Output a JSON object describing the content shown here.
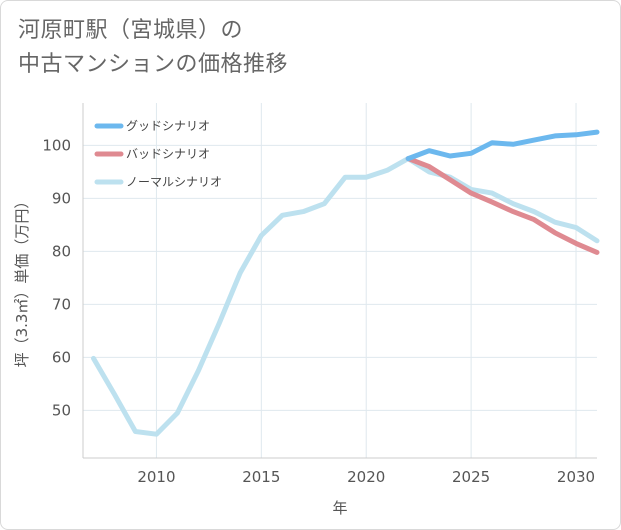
{
  "title": {
    "line1": "河原町駅（宮城県）の",
    "line2": "中古マンションの価格推移"
  },
  "chart_data": {
    "type": "line",
    "xlabel": "年",
    "ylabel": "坪（3.3㎡）単価（万円）",
    "xlim": [
      2006.5,
      2031
    ],
    "ylim": [
      41,
      108
    ],
    "x_ticks": [
      2010,
      2015,
      2020,
      2025,
      2030
    ],
    "y_ticks": [
      50,
      60,
      70,
      80,
      90,
      100
    ],
    "grid": true,
    "legend_position": "top-left",
    "series": [
      {
        "name": "グッドシナリオ",
        "color": "#6cb8ee",
        "x": [
          2022,
          2023,
          2024,
          2025,
          2026,
          2027,
          2028,
          2029,
          2030,
          2031
        ],
        "values": [
          97.5,
          99.0,
          98.0,
          98.5,
          100.5,
          100.2,
          101.0,
          101.8,
          102.0,
          102.5
        ]
      },
      {
        "name": "バッドシナリオ",
        "color": "#df8a91",
        "x": [
          2022,
          2023,
          2024,
          2025,
          2026,
          2027,
          2028,
          2029,
          2030,
          2031
        ],
        "values": [
          97.5,
          96.0,
          93.5,
          91.0,
          89.3,
          87.5,
          86.0,
          83.5,
          81.5,
          79.8
        ]
      },
      {
        "name": "ノーマルシナリオ",
        "color": "#bde1ef",
        "x": [
          2007,
          2008,
          2009,
          2010,
          2011,
          2012,
          2013,
          2014,
          2015,
          2016,
          2017,
          2018,
          2019,
          2020,
          2021,
          2022,
          2023,
          2024,
          2025,
          2026,
          2027,
          2028,
          2029,
          2030,
          2031
        ],
        "values": [
          59.8,
          53.0,
          46.0,
          45.5,
          49.5,
          57.5,
          66.5,
          76.0,
          83.0,
          86.8,
          87.5,
          89.0,
          94.0,
          94.0,
          95.3,
          97.5,
          95.0,
          94.0,
          91.7,
          91.0,
          89.0,
          87.5,
          85.5,
          84.5,
          82.0
        ]
      }
    ]
  }
}
